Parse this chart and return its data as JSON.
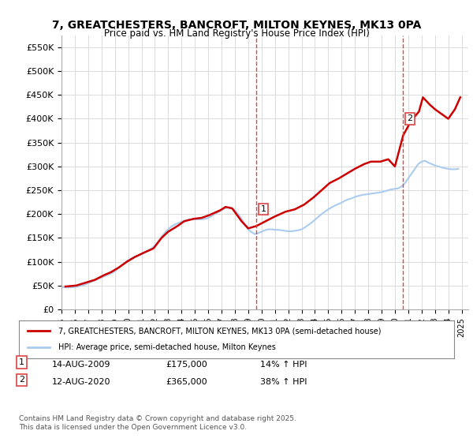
{
  "title": "7, GREATCHESTERS, BANCROFT, MILTON KEYNES, MK13 0PA",
  "subtitle": "Price paid vs. HM Land Registry's House Price Index (HPI)",
  "ylabel": "",
  "xlabel": "",
  "ylim": [
    0,
    575000
  ],
  "xlim_start": 1995.0,
  "xlim_end": 2025.5,
  "yticks": [
    0,
    50000,
    100000,
    150000,
    200000,
    250000,
    300000,
    350000,
    400000,
    450000,
    500000,
    550000
  ],
  "ytick_labels": [
    "£0",
    "£50K",
    "£100K",
    "£150K",
    "£200K",
    "£250K",
    "£300K",
    "£350K",
    "£400K",
    "£450K",
    "£500K",
    "£550K"
  ],
  "background_color": "#ffffff",
  "grid_color": "#dddddd",
  "line1_color": "#cc0000",
  "line2_color": "#aaccee",
  "vline_color": "#dd4444",
  "marker1_x": 2009.617,
  "marker2_x": 2020.617,
  "marker1_y": 175000,
  "marker2_y": 365000,
  "annotation1": [
    "1",
    "14-AUG-2009",
    "£175,000",
    "14% ↑ HPI"
  ],
  "annotation2": [
    "2",
    "12-AUG-2020",
    "£365,000",
    "38% ↑ HPI"
  ],
  "legend_line1": "7, GREATCHESTERS, BANCROFT, MILTON KEYNES, MK13 0PA (semi-detached house)",
  "legend_line2": "HPI: Average price, semi-detached house, Milton Keynes",
  "footnote": "Contains HM Land Registry data © Crown copyright and database right 2025.\nThis data is licensed under the Open Government Licence v3.0.",
  "hpi_data_x": [
    1995.0,
    1995.25,
    1995.5,
    1995.75,
    1996.0,
    1996.25,
    1996.5,
    1996.75,
    1997.0,
    1997.25,
    1997.5,
    1997.75,
    1998.0,
    1998.25,
    1998.5,
    1998.75,
    1999.0,
    1999.25,
    1999.5,
    1999.75,
    2000.0,
    2000.25,
    2000.5,
    2000.75,
    2001.0,
    2001.25,
    2001.5,
    2001.75,
    2002.0,
    2002.25,
    2002.5,
    2002.75,
    2003.0,
    2003.25,
    2003.5,
    2003.75,
    2004.0,
    2004.25,
    2004.5,
    2004.75,
    2005.0,
    2005.25,
    2005.5,
    2005.75,
    2006.0,
    2006.25,
    2006.5,
    2006.75,
    2007.0,
    2007.25,
    2007.5,
    2007.75,
    2008.0,
    2008.25,
    2008.5,
    2008.75,
    2009.0,
    2009.25,
    2009.5,
    2009.75,
    2010.0,
    2010.25,
    2010.5,
    2010.75,
    2011.0,
    2011.25,
    2011.5,
    2011.75,
    2012.0,
    2012.25,
    2012.5,
    2012.75,
    2013.0,
    2013.25,
    2013.5,
    2013.75,
    2014.0,
    2014.25,
    2014.5,
    2014.75,
    2015.0,
    2015.25,
    2015.5,
    2015.75,
    2016.0,
    2016.25,
    2016.5,
    2016.75,
    2017.0,
    2017.25,
    2017.5,
    2017.75,
    2018.0,
    2018.25,
    2018.5,
    2018.75,
    2019.0,
    2019.25,
    2019.5,
    2019.75,
    2020.0,
    2020.25,
    2020.5,
    2020.75,
    2021.0,
    2021.25,
    2021.5,
    2021.75,
    2022.0,
    2022.25,
    2022.5,
    2022.75,
    2023.0,
    2023.25,
    2023.5,
    2023.75,
    2024.0,
    2024.25,
    2024.5,
    2024.75
  ],
  "hpi_data_y": [
    47000,
    46500,
    46000,
    46500,
    47000,
    48000,
    50000,
    52000,
    55000,
    58000,
    61000,
    64000,
    67000,
    70000,
    73000,
    76000,
    80000,
    86000,
    92000,
    98000,
    103000,
    107000,
    110000,
    113000,
    116000,
    120000,
    124000,
    128000,
    134000,
    142000,
    152000,
    161000,
    168000,
    174000,
    178000,
    181000,
    184000,
    186000,
    188000,
    189000,
    189000,
    189000,
    189000,
    190000,
    192000,
    196000,
    200000,
    204000,
    208000,
    212000,
    214000,
    212000,
    208000,
    200000,
    190000,
    178000,
    168000,
    162000,
    158000,
    160000,
    163000,
    166000,
    168000,
    168000,
    167000,
    167000,
    166000,
    165000,
    164000,
    164000,
    165000,
    166000,
    168000,
    172000,
    177000,
    182000,
    188000,
    194000,
    200000,
    205000,
    210000,
    214000,
    218000,
    221000,
    224000,
    228000,
    231000,
    233000,
    236000,
    238000,
    240000,
    241000,
    242000,
    243000,
    244000,
    245000,
    246000,
    248000,
    250000,
    252000,
    253000,
    254000,
    258000,
    265000,
    275000,
    285000,
    295000,
    305000,
    310000,
    312000,
    308000,
    305000,
    302000,
    300000,
    298000,
    296000,
    295000,
    294000,
    294000,
    295000
  ],
  "price_data_x": [
    1995.3,
    1996.1,
    1997.5,
    1998.2,
    1998.7,
    1999.3,
    1999.9,
    2000.5,
    2001.1,
    2001.9,
    2002.5,
    2003.0,
    2003.7,
    2004.2,
    2004.9,
    2005.5,
    2006.1,
    2006.9,
    2007.3,
    2007.8,
    2008.5,
    2009.0,
    2009.617,
    2010.3,
    2011.0,
    2011.8,
    2012.5,
    2013.2,
    2013.9,
    2014.5,
    2015.1,
    2015.8,
    2016.4,
    2017.0,
    2017.7,
    2018.2,
    2018.9,
    2019.5,
    2020.0,
    2020.617,
    2021.2,
    2021.8,
    2022.1,
    2022.6,
    2023.0,
    2023.5,
    2024.0,
    2024.5,
    2024.9
  ],
  "price_data_y": [
    48000,
    50000,
    62000,
    72000,
    78000,
    88000,
    100000,
    110000,
    118000,
    128000,
    150000,
    163000,
    175000,
    185000,
    190000,
    192000,
    198000,
    208000,
    215000,
    212000,
    185000,
    170000,
    175000,
    185000,
    195000,
    205000,
    210000,
    220000,
    235000,
    250000,
    265000,
    275000,
    285000,
    295000,
    305000,
    310000,
    310000,
    315000,
    300000,
    365000,
    395000,
    415000,
    445000,
    430000,
    420000,
    410000,
    400000,
    420000,
    445000
  ]
}
